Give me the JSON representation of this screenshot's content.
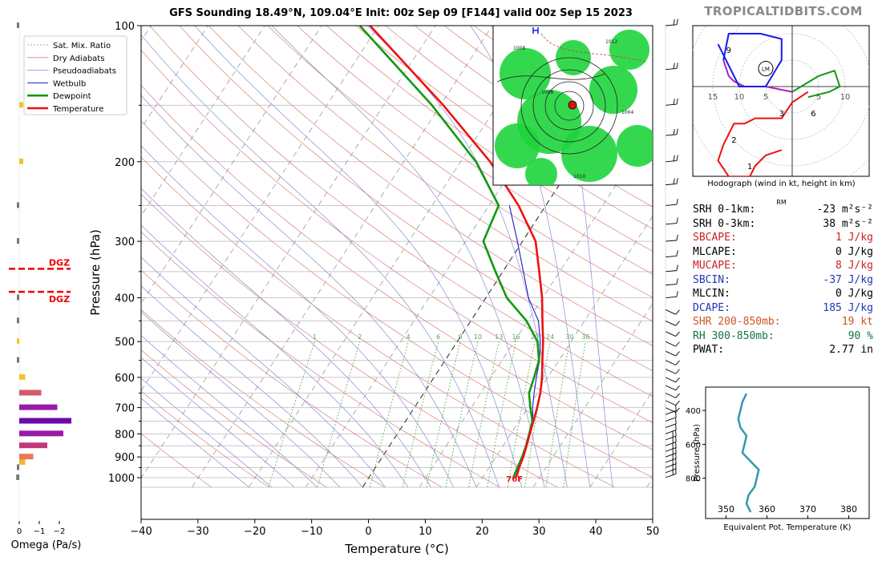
{
  "title": "GFS Sounding 18.49°N, 109.04°E Init: 00z Sep 09 [F144] valid 00z Sep 15 2023",
  "brand": "TROPICALTIDBITS.COM",
  "colors": {
    "temperature": "#ee1111",
    "dewpoint": "#119911",
    "wetbulb": "#1a1acc",
    "dry_adiabat": "#d98080",
    "pseudoadiabat": "#8a8ad6",
    "mixing_ratio": "#55aa55",
    "hodo_0_3": "#ee1111",
    "hodo_3_6": "#119911",
    "hodo_6_9": "#aa22bb",
    "hodo_9_12": "#1a1aee",
    "theta_e": "#3399aa",
    "dgz": "#ee0000",
    "cape_red": "#cc2222",
    "cin_blue": "#2233bb",
    "shear_orange": "#cc5522",
    "rh_green": "#117744"
  },
  "chart_data": [
    {
      "type": "line",
      "name": "skew-t",
      "xlabel": "Temperature (°C)",
      "ylabel": "Pressure (hPa)",
      "xlim": [
        -40,
        50
      ],
      "ylim": [
        1050,
        100
      ],
      "y_scale": "log",
      "x_ticks": [
        -40,
        -30,
        -20,
        -10,
        0,
        10,
        20,
        30,
        40,
        50
      ],
      "y_ticks": [
        1000,
        900,
        800,
        700,
        600,
        500,
        400,
        300,
        200,
        100
      ],
      "legend": [
        "Sat. Mix. Ratio",
        "Dry Adiabats",
        "Pseudoadiabats",
        "Wetbulb",
        "Dewpoint",
        "Temperature"
      ],
      "legend_position": "top-left",
      "mixing_ratio_labels": [
        "1",
        "2",
        "4",
        "6",
        "8",
        "10",
        "13",
        "16",
        "20",
        "24",
        "30",
        "36"
      ],
      "surface_label": "76F",
      "series": [
        {
          "name": "Temperature",
          "p": [
            1000,
            950,
            900,
            850,
            800,
            750,
            700,
            650,
            600,
            550,
            500,
            450,
            400,
            350,
            300,
            250,
            200,
            150,
            100
          ],
          "t": [
            25.9,
            25.3,
            24.8,
            24.1,
            23.3,
            22.5,
            21.6,
            20.5,
            19.0,
            17.1,
            15.1,
            12.6,
            9.9,
            6.4,
            2.3,
            -4.8,
            -14.8,
            -29.5,
            -51.5
          ]
        },
        {
          "name": "Dewpoint",
          "p": [
            1000,
            950,
            900,
            850,
            800,
            750,
            700,
            650,
            600,
            550,
            500,
            450,
            400,
            350,
            300,
            250,
            200,
            150,
            100
          ],
          "t": [
            25.4,
            25.0,
            24.6,
            24.0,
            23.2,
            22.3,
            20.4,
            18.5,
            17.6,
            16.5,
            14.1,
            9.8,
            3.7,
            -1.3,
            -6.9,
            -8.3,
            -17.3,
            -31.5,
            -53.3
          ]
        },
        {
          "name": "Wetbulb",
          "p": [
            1000,
            950,
            900,
            850,
            800,
            750,
            700,
            650,
            600,
            550,
            500,
            450,
            400,
            350,
            300,
            250
          ],
          "t": [
            25.5,
            25.1,
            24.7,
            24.0,
            23.2,
            22.4,
            20.8,
            19.4,
            18.0,
            16.6,
            14.6,
            11.9,
            7.5,
            3.6,
            -0.9,
            -6.4
          ]
        }
      ]
    },
    {
      "type": "bar",
      "name": "omega",
      "xlabel": "Omega (Pa/s)",
      "x_ticks": [
        "0",
        "−1",
        "−2"
      ],
      "p": [
        1000,
        950,
        925,
        900,
        850,
        800,
        750,
        700,
        650,
        600,
        550,
        500,
        450,
        400,
        300,
        250,
        200,
        150,
        100
      ],
      "values": [
        0.15,
        0.05,
        -0.3,
        -0.7,
        -1.4,
        -2.2,
        -2.6,
        -1.9,
        -1.1,
        -0.3,
        0.0,
        0.1,
        0.1,
        0.0,
        0.1,
        0.1,
        -0.2,
        -0.2,
        0.05
      ],
      "dgz_label": "DGZ",
      "dgz_levels_hpa": [
        345,
        388
      ]
    },
    {
      "type": "line",
      "name": "hodograph",
      "xlabel": "Hodograph (wind in kt, height in km)",
      "range_ring_labels": [
        "15",
        "10",
        "5",
        "5",
        "10"
      ],
      "height_labels": [
        "1",
        "2",
        "3",
        "6",
        "9"
      ],
      "storm_motion_label": "LM",
      "segments": [
        {
          "name": "0-3 km",
          "u": [
            -2,
            -5,
            -7,
            -8,
            -10,
            -12,
            -14,
            -13,
            -11,
            -9,
            -7,
            -2,
            0,
            3
          ],
          "v": [
            -12,
            -13,
            -15,
            -17,
            -17,
            -17,
            -14,
            -11,
            -7,
            -7,
            -6,
            -6,
            -3,
            -1
          ]
        },
        {
          "name": "3-6 km",
          "u": [
            0,
            5,
            8,
            9,
            7,
            3
          ],
          "v": [
            -1,
            2,
            3,
            0,
            -1,
            -2
          ]
        },
        {
          "name": "6-9 km",
          "u": [
            0,
            -5,
            -9,
            -11,
            -12,
            -13
          ],
          "v": [
            -1,
            0,
            0,
            1,
            2,
            5
          ]
        },
        {
          "name": "9-12 km",
          "u": [
            -13,
            -12,
            -6,
            -2,
            -2,
            -5,
            -10,
            -14
          ],
          "v": [
            5,
            10,
            10,
            9,
            5,
            0,
            0,
            8
          ]
        }
      ]
    },
    {
      "type": "line",
      "name": "equivalent-potential-temperature",
      "xlabel": "Equivalent Pot. Temperature (K)",
      "ylabel": "Pressure (hPa)",
      "xlim": [
        345,
        385
      ],
      "ylim": [
        1000,
        300
      ],
      "x_ticks": [
        350,
        360,
        370,
        380
      ],
      "y_ticks": [
        400,
        600,
        800
      ],
      "p": [
        300,
        350,
        400,
        450,
        500,
        550,
        600,
        650,
        700,
        750,
        800,
        850,
        900,
        950,
        1000
      ],
      "theta_e": [
        355.0,
        354.0,
        353.5,
        353.0,
        353.5,
        355.0,
        354.5,
        354.0,
        356.0,
        358.0,
        357.5,
        357.0,
        355.5,
        355.0,
        356.0
      ]
    }
  ],
  "stats": {
    "rm": "RM",
    "rows": [
      {
        "label": "SRH 0-1km:",
        "value": "-23",
        "unit": "m²s⁻²",
        "color": "#000000"
      },
      {
        "label": "SRH 0-3km:",
        "value": "38",
        "unit": "m²s⁻²",
        "color": "#000000"
      },
      {
        "label": "SBCAPE:",
        "value": "1",
        "unit": "J/kg",
        "color": "#cc2222"
      },
      {
        "label": "MLCAPE:",
        "value": "0",
        "unit": "J/kg",
        "color": "#000000"
      },
      {
        "label": "MUCAPE:",
        "value": "8",
        "unit": "J/kg",
        "color": "#cc2222"
      },
      {
        "label": "SBCIN:",
        "value": "-37",
        "unit": "J/kg",
        "color": "#2233bb"
      },
      {
        "label": "MLCIN:",
        "value": "0",
        "unit": "J/kg",
        "color": "#000000"
      },
      {
        "label": "DCAPE:",
        "value": "185",
        "unit": "J/kg",
        "color": "#2233bb"
      },
      {
        "label": "SHR 200-850mb:",
        "value": "19",
        "unit": "kt",
        "color": "#cc5522"
      },
      {
        "label": "RH 300-850mb:",
        "value": "90",
        "unit": "%",
        "color": "#117744"
      },
      {
        "label": "PWAT:",
        "value": "2.77",
        "unit": "in",
        "color": "#000000"
      }
    ]
  },
  "map_inset": {
    "center_marker": "storm-center-icon",
    "pressure_labels": [
      "1012",
      "1008",
      "1004",
      "1010",
      "1008"
    ]
  }
}
